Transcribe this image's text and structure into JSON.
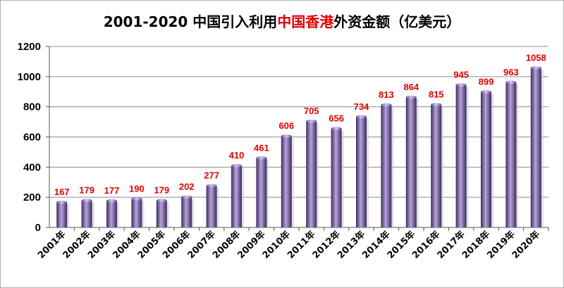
{
  "chart_data": {
    "type": "bar",
    "title_parts": [
      {
        "text": "2001-2020 中国引入利用",
        "color": "#000000"
      },
      {
        "text": "中国香港",
        "color": "#e00000"
      },
      {
        "text": "外资金额（亿美元）",
        "color": "#000000"
      }
    ],
    "categories": [
      "2001年",
      "2002年",
      "2003年",
      "2004年",
      "2005年",
      "2006年",
      "2007年",
      "2008年",
      "2009年",
      "2010年",
      "2011年",
      "2012年",
      "2013年",
      "2014年",
      "2015年",
      "2016年",
      "2017年",
      "2018年",
      "2019年",
      "2020年"
    ],
    "values": [
      167,
      179,
      177,
      190,
      179,
      202,
      277,
      410,
      461,
      606,
      705,
      656,
      734,
      813,
      864,
      815,
      945,
      899,
      963,
      1058
    ],
    "y_ticks": [
      0,
      200,
      400,
      600,
      800,
      1000,
      1200
    ],
    "ylim": [
      0,
      1200
    ],
    "grid": true,
    "legend": "none",
    "colors": {
      "bar_dark": "#3e2a63",
      "bar_mid": "#7c62a8",
      "bar_light": "#b7a4d8",
      "value_label": "#e00000",
      "grid": "#8c8c8c"
    }
  }
}
